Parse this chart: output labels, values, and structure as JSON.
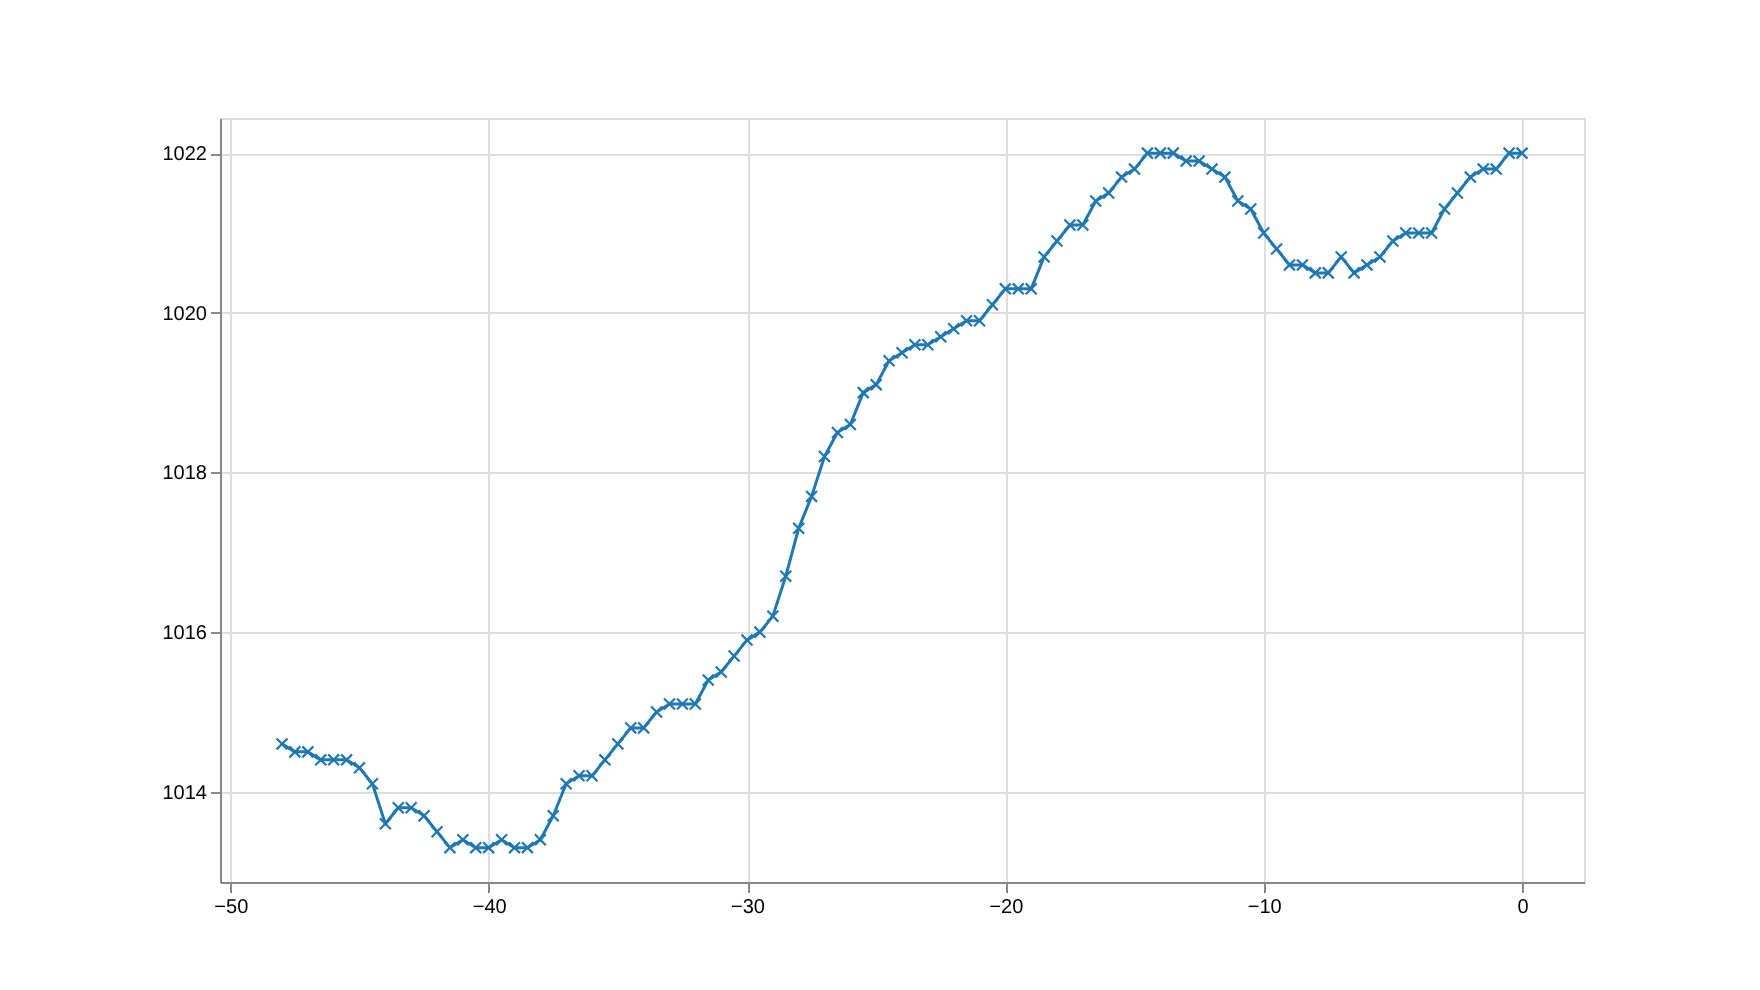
{
  "chart_data": {
    "type": "line",
    "color": "#1f77b4",
    "marker": "cross",
    "line_style": "solid",
    "grid": true,
    "x": [
      -48,
      -47.5,
      -47,
      -46.5,
      -46,
      -45.5,
      -45,
      -44.5,
      -44,
      -43.5,
      -43,
      -42.5,
      -42,
      -41.5,
      -41,
      -40.5,
      -40,
      -39.5,
      -39,
      -38.5,
      -38,
      -37.5,
      -37,
      -36.5,
      -36,
      -35.5,
      -35,
      -34.5,
      -34,
      -33.5,
      -33,
      -32.5,
      -32,
      -31.5,
      -31,
      -30.5,
      -30,
      -29.5,
      -29,
      -28.5,
      -28,
      -27.5,
      -27,
      -26.5,
      -26,
      -25.5,
      -25,
      -24.5,
      -24,
      -23.5,
      -23,
      -22.5,
      -22,
      -21.5,
      -21,
      -20.5,
      -20,
      -19.5,
      -19,
      -18.5,
      -18,
      -17.5,
      -17,
      -16.5,
      -16,
      -15.5,
      -15,
      -14.5,
      -14,
      -13.5,
      -13,
      -12.5,
      -12,
      -11.5,
      -11,
      -10.5,
      -10,
      -9.5,
      -9,
      -8.5,
      -8,
      -7.5,
      -7,
      -6.5,
      -6,
      -5.5,
      -5,
      -4.5,
      -4,
      -3.5,
      -3,
      -2.5,
      -2,
      -1.5,
      -1,
      -0.5,
      0
    ],
    "values": [
      1014.6,
      1014.5,
      1014.5,
      1014.4,
      1014.4,
      1014.4,
      1014.3,
      1014.1,
      1013.6,
      1013.8,
      1013.8,
      1013.7,
      1013.5,
      1013.3,
      1013.4,
      1013.3,
      1013.3,
      1013.4,
      1013.3,
      1013.3,
      1013.4,
      1013.7,
      1014.1,
      1014.2,
      1014.2,
      1014.4,
      1014.6,
      1014.8,
      1014.8,
      1015.0,
      1015.1,
      1015.1,
      1015.1,
      1015.4,
      1015.5,
      1015.7,
      1015.9,
      1016.0,
      1016.2,
      1016.7,
      1017.3,
      1017.7,
      1018.2,
      1018.5,
      1018.6,
      1019.0,
      1019.1,
      1019.4,
      1019.5,
      1019.6,
      1019.6,
      1019.7,
      1019.8,
      1019.9,
      1019.9,
      1020.1,
      1020.3,
      1020.3,
      1020.3,
      1020.7,
      1020.9,
      1021.1,
      1021.1,
      1021.4,
      1021.5,
      1021.7,
      1021.8,
      1022.0,
      1022.0,
      1022.0,
      1021.9,
      1021.9,
      1021.8,
      1021.7,
      1021.4,
      1021.3,
      1021.0,
      1020.8,
      1020.6,
      1020.6,
      1020.5,
      1020.5,
      1020.7,
      1020.5,
      1020.6,
      1020.7,
      1020.9,
      1021.0,
      1021.0,
      1021.0,
      1021.3,
      1021.5,
      1021.7,
      1021.8,
      1021.8,
      1022.0,
      1022.0
    ],
    "xlim": [
      -50.4,
      2.4
    ],
    "ylim": [
      1012.87,
      1022.44
    ],
    "xticks": [
      {
        "value": -50,
        "label": "−50"
      },
      {
        "value": -40,
        "label": "−40"
      },
      {
        "value": -30,
        "label": "−30"
      },
      {
        "value": -20,
        "label": "−20"
      },
      {
        "value": -10,
        "label": "−10"
      },
      0
    ],
    "yticks": [
      1014,
      1016,
      1018,
      1020,
      1022
    ]
  }
}
